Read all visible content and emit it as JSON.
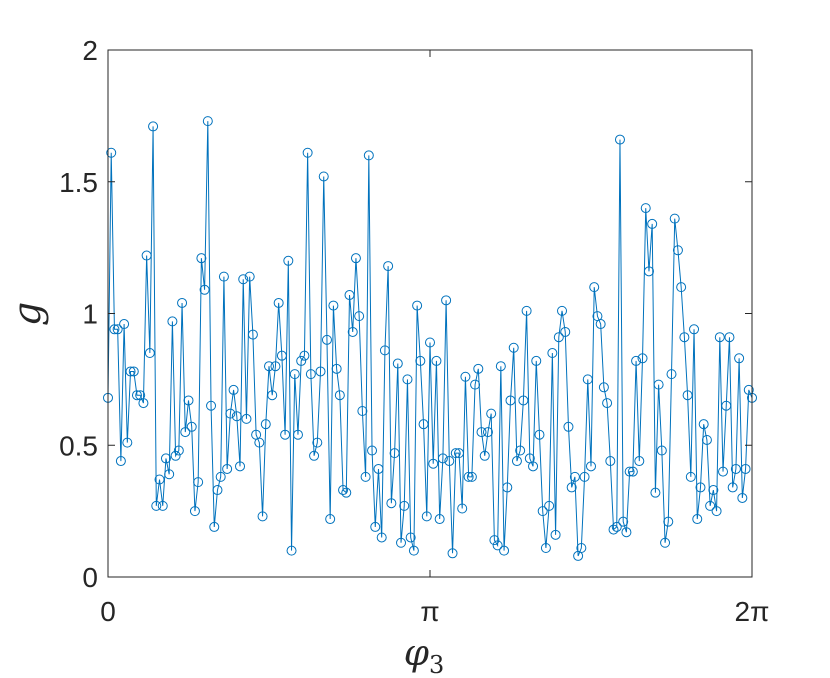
{
  "chart_data": {
    "type": "line",
    "markers": "circle",
    "xlabel": "φ3",
    "ylabel": "g",
    "xlim": [
      0,
      6.2832
    ],
    "ylim": [
      0,
      2
    ],
    "xticks": [
      {
        "value": 0,
        "label": "0"
      },
      {
        "value": 3.1416,
        "label": "π"
      },
      {
        "value": 6.2832,
        "label": "2π"
      }
    ],
    "yticks": [
      {
        "value": 0,
        "label": "0"
      },
      {
        "value": 0.5,
        "label": "0.5"
      },
      {
        "value": 1,
        "label": "1"
      },
      {
        "value": 1.5,
        "label": "1.5"
      },
      {
        "value": 2,
        "label": "2"
      }
    ],
    "grid": false,
    "series": [
      {
        "color": "#0072BD",
        "y": [
          0.68,
          1.61,
          0.94,
          0.94,
          0.44,
          0.96,
          0.51,
          0.78,
          0.78,
          0.69,
          0.69,
          0.66,
          1.22,
          0.85,
          1.71,
          0.27,
          0.37,
          0.27,
          0.45,
          0.39,
          0.97,
          0.46,
          0.48,
          1.04,
          0.55,
          0.67,
          0.57,
          0.25,
          0.36,
          1.21,
          1.09,
          1.73,
          0.65,
          0.19,
          0.33,
          0.38,
          1.14,
          0.41,
          0.62,
          0.71,
          0.61,
          0.42,
          1.13,
          0.6,
          1.14,
          0.92,
          0.54,
          0.51,
          0.23,
          0.58,
          0.8,
          0.69,
          0.8,
          1.04,
          0.84,
          0.54,
          1.2,
          0.1,
          0.77,
          0.54,
          0.82,
          0.84,
          1.61,
          0.77,
          0.46,
          0.51,
          0.78,
          1.52,
          0.9,
          0.22,
          1.03,
          0.79,
          0.69,
          0.33,
          0.32,
          1.07,
          0.93,
          1.21,
          0.99,
          0.63,
          0.38,
          1.6,
          0.48,
          0.19,
          0.41,
          0.15,
          0.86,
          1.18,
          0.28,
          0.47,
          0.81,
          0.13,
          0.27,
          0.75,
          0.15,
          0.1,
          1.03,
          0.82,
          0.58,
          0.23,
          0.89,
          0.43,
          0.82,
          0.22,
          0.45,
          1.05,
          0.44,
          0.09,
          0.47,
          0.47,
          0.26,
          0.76,
          0.38,
          0.38,
          0.73,
          0.79,
          0.55,
          0.46,
          0.55,
          0.62,
          0.14,
          0.12,
          0.8,
          0.1,
          0.34,
          0.67,
          0.87,
          0.44,
          0.48,
          0.67,
          1.01,
          0.45,
          0.42,
          0.82,
          0.54,
          0.25,
          0.11,
          0.27,
          0.85,
          0.16,
          0.91,
          1.01,
          0.93,
          0.57,
          0.34,
          0.38,
          0.08,
          0.11,
          0.38,
          0.75,
          0.42,
          1.1,
          0.99,
          0.96,
          0.72,
          0.66,
          0.44,
          0.18,
          0.19,
          1.66,
          0.21,
          0.17,
          0.4,
          0.4,
          0.82,
          0.44,
          0.83,
          1.4,
          1.16,
          1.34,
          0.32,
          0.73,
          0.48,
          0.13,
          0.21,
          0.77,
          1.36,
          1.24,
          1.1,
          0.91,
          0.69,
          0.38,
          0.94,
          0.22,
          0.34,
          0.58,
          0.52,
          0.27,
          0.33,
          0.25,
          0.91,
          0.4,
          0.65,
          0.91,
          0.34,
          0.41,
          0.83,
          0.3,
          0.41,
          0.71,
          0.68
        ]
      }
    ]
  }
}
